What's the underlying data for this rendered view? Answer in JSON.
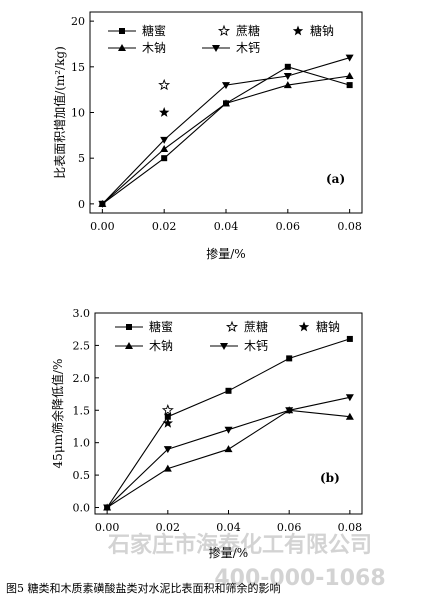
{
  "chart_data": [
    {
      "type": "line",
      "panel_label": "(a)",
      "x": [
        0.0,
        0.02,
        0.04,
        0.06,
        0.08
      ],
      "x_tick_labels": [
        "0.00",
        "0.02",
        "0.04",
        "0.06",
        "0.08"
      ],
      "xlim": [
        -0.004,
        0.084
      ],
      "ylim": [
        -1,
        21
      ],
      "y_ticks": [
        0,
        5,
        10,
        15,
        20
      ],
      "y_tick_labels": [
        "0",
        "5",
        "10",
        "15",
        "20"
      ],
      "xlabel": "掺量/%",
      "ylabel": "比表面积增加值/(m²/kg)",
      "grid": false,
      "legend_position": "top",
      "series": [
        {
          "name": "糖蜜",
          "marker": "square",
          "connected": true,
          "x": [
            0.0,
            0.02,
            0.04,
            0.06,
            0.08
          ],
          "values": [
            0,
            5,
            11,
            15,
            13
          ]
        },
        {
          "name": "蔗糖",
          "marker": "open-star",
          "connected": false,
          "x": [
            0.02
          ],
          "values": [
            13
          ]
        },
        {
          "name": "糖钠",
          "marker": "filled-star",
          "connected": false,
          "x": [
            0.02
          ],
          "values": [
            10
          ]
        },
        {
          "name": "木钠",
          "marker": "triangle-up",
          "connected": true,
          "x": [
            0.0,
            0.02,
            0.04,
            0.06,
            0.08
          ],
          "values": [
            0,
            6,
            11,
            13,
            14
          ]
        },
        {
          "name": "木钙",
          "marker": "triangle-down",
          "connected": true,
          "x": [
            0.0,
            0.02,
            0.04,
            0.06,
            0.08
          ],
          "values": [
            0,
            7,
            13,
            14,
            16
          ]
        }
      ]
    },
    {
      "type": "line",
      "panel_label": "(b)",
      "x": [
        0.0,
        0.02,
        0.04,
        0.06,
        0.08
      ],
      "x_tick_labels": [
        "0.00",
        "0.02",
        "0.04",
        "0.06",
        "0.08"
      ],
      "xlim": [
        -0.004,
        0.084
      ],
      "ylim": [
        -0.1,
        3.0
      ],
      "y_ticks": [
        0.0,
        0.5,
        1.0,
        1.5,
        2.0,
        2.5,
        3.0
      ],
      "y_tick_labels": [
        "0.0",
        "0.5",
        "1.0",
        "1.5",
        "2.0",
        "2.5",
        "3.0"
      ],
      "xlabel": "掺量/%",
      "ylabel": "45μm筛余降低值/%",
      "grid": false,
      "legend_position": "top",
      "series": [
        {
          "name": "糖蜜",
          "marker": "square",
          "connected": true,
          "x": [
            0.0,
            0.02,
            0.04,
            0.06,
            0.08
          ],
          "values": [
            0.0,
            1.4,
            1.8,
            2.3,
            2.6
          ]
        },
        {
          "name": "蔗糖",
          "marker": "open-star",
          "connected": false,
          "x": [
            0.02
          ],
          "values": [
            1.5
          ]
        },
        {
          "name": "糖钠",
          "marker": "filled-star",
          "connected": false,
          "x": [
            0.02
          ],
          "values": [
            1.3
          ]
        },
        {
          "name": "木钠",
          "marker": "triangle-up",
          "connected": true,
          "x": [
            0.0,
            0.02,
            0.04,
            0.06,
            0.08
          ],
          "values": [
            0.0,
            0.6,
            0.9,
            1.5,
            1.4
          ]
        },
        {
          "name": "木钙",
          "marker": "triangle-down",
          "connected": true,
          "x": [
            0.0,
            0.02,
            0.04,
            0.06,
            0.08
          ],
          "values": [
            0.0,
            0.9,
            1.2,
            1.5,
            1.7
          ]
        }
      ]
    }
  ],
  "watermark": {
    "line1": "石家庄市海泰化工有限公司",
    "line2": "400-000-1068"
  },
  "caption": "图5   糖类和木质素磺酸盐类对水泥比表面积和筛余的影响"
}
